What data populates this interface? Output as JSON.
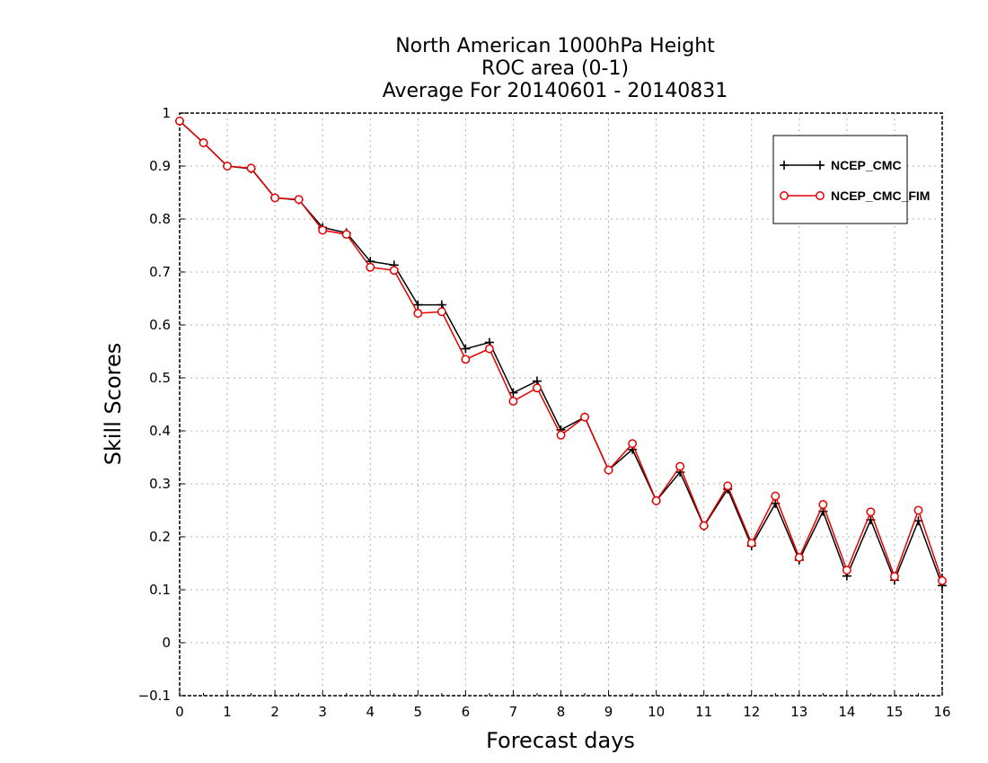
{
  "chart_data": {
    "type": "line",
    "title_lines": [
      "North American 1000hPa Height",
      "ROC area (0-1)",
      "Average For 20140601 - 20140831"
    ],
    "xlabel": "Forecast days",
    "ylabel": "Skill Scores",
    "xlim": [
      0,
      16
    ],
    "ylim": [
      -0.1,
      1
    ],
    "x_ticks": [
      "0",
      "1",
      "2",
      "3",
      "4",
      "5",
      "6",
      "7",
      "8",
      "9",
      "10",
      "11",
      "12",
      "13",
      "14",
      "15",
      "16"
    ],
    "y_ticks": [
      "−0.1",
      "0",
      "0.1",
      "0.2",
      "0.3",
      "0.4",
      "0.5",
      "0.6",
      "0.7",
      "0.8",
      "0.9",
      "1"
    ],
    "grid": true,
    "legend_position": "top-right",
    "x": [
      0,
      0.5,
      1,
      1.5,
      2,
      2.5,
      3,
      3.5,
      4,
      4.5,
      5,
      5.5,
      6,
      6.5,
      7,
      7.5,
      8,
      8.5,
      9,
      9.5,
      10,
      10.5,
      11,
      11.5,
      12,
      12.5,
      13,
      13.5,
      14,
      14.5,
      15,
      15.5,
      16
    ],
    "series": [
      {
        "name": "NCEP_CMC",
        "color": "#000000",
        "marker": "plus",
        "values": [
          0.985,
          0.944,
          0.9,
          0.895,
          0.84,
          0.836,
          0.784,
          0.774,
          0.72,
          0.713,
          0.638,
          0.638,
          0.555,
          0.567,
          0.472,
          0.494,
          0.402,
          0.426,
          0.326,
          0.365,
          0.268,
          0.322,
          0.22,
          0.29,
          0.183,
          0.263,
          0.156,
          0.248,
          0.126,
          0.232,
          0.118,
          0.23,
          0.108
        ]
      },
      {
        "name": "NCEP_CMC_FIM",
        "color": "#e60000",
        "marker": "circle",
        "values": [
          0.985,
          0.944,
          0.9,
          0.896,
          0.84,
          0.837,
          0.779,
          0.771,
          0.709,
          0.703,
          0.622,
          0.625,
          0.535,
          0.555,
          0.456,
          0.481,
          0.392,
          0.426,
          0.326,
          0.376,
          0.268,
          0.333,
          0.221,
          0.296,
          0.188,
          0.277,
          0.161,
          0.261,
          0.137,
          0.247,
          0.125,
          0.25,
          0.117
        ]
      }
    ]
  }
}
